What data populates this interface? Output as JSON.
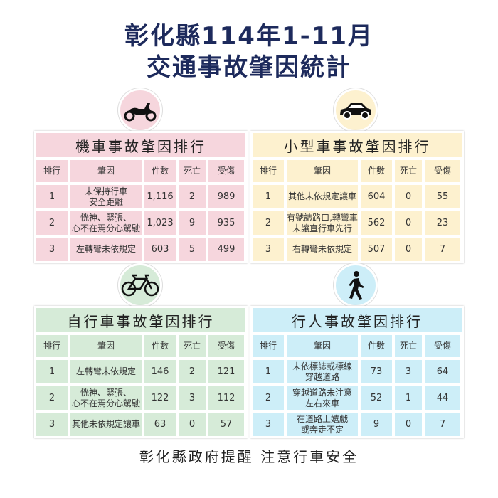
{
  "title": {
    "line1": "彰化縣114年1-11月",
    "line2": "交通事故肇因統計"
  },
  "columns": [
    "排行",
    "肇因",
    "件數",
    "死亡",
    "受傷"
  ],
  "panels": [
    {
      "title": "機車事故肇因排行",
      "icon": "motorcycle-icon",
      "color": "#f6d6dd",
      "rows": [
        {
          "rank": "1",
          "cause": "未保持行車\n安全距離",
          "cases": "1,116",
          "deaths": "2",
          "injuries": "989"
        },
        {
          "rank": "2",
          "cause": "恍神、緊張、\n心不在焉分心駕駛",
          "cases": "1,023",
          "deaths": "9",
          "injuries": "935"
        },
        {
          "rank": "3",
          "cause": "左轉彎未依規定",
          "cases": "603",
          "deaths": "5",
          "injuries": "499"
        }
      ]
    },
    {
      "title": "小型車事故肇因排行",
      "icon": "car-icon",
      "color": "#fdf1cf",
      "rows": [
        {
          "rank": "1",
          "cause": "其他未依規定讓車",
          "cases": "604",
          "deaths": "0",
          "injuries": "55"
        },
        {
          "rank": "2",
          "cause": "有號誌路口,轉彎車\n未讓直行車先行",
          "cases": "562",
          "deaths": "0",
          "injuries": "23"
        },
        {
          "rank": "3",
          "cause": "右轉彎未依規定",
          "cases": "507",
          "deaths": "0",
          "injuries": "7"
        }
      ]
    },
    {
      "title": "自行車事故肇因排行",
      "icon": "bicycle-icon",
      "color": "#d6ebd8",
      "rows": [
        {
          "rank": "1",
          "cause": "左轉彎未依規定",
          "cases": "146",
          "deaths": "2",
          "injuries": "121"
        },
        {
          "rank": "2",
          "cause": "恍神、緊張、\n心不在焉分心駕駛",
          "cases": "122",
          "deaths": "3",
          "injuries": "112"
        },
        {
          "rank": "3",
          "cause": "其他未依規定讓車",
          "cases": "63",
          "deaths": "0",
          "injuries": "57"
        }
      ]
    },
    {
      "title": "行人事故肇因排行",
      "icon": "pedestrian-icon",
      "color": "#cdeef8",
      "rows": [
        {
          "rank": "1",
          "cause": "未依標誌或標線\n穿越道路",
          "cases": "73",
          "deaths": "3",
          "injuries": "64"
        },
        {
          "rank": "2",
          "cause": "穿越道路未注意\n左右來車",
          "cases": "52",
          "deaths": "1",
          "injuries": "44"
        },
        {
          "rank": "3",
          "cause": "在道路上嬉戲\n或奔走不定",
          "cases": "9",
          "deaths": "0",
          "injuries": "7"
        }
      ]
    }
  ],
  "footer": "彰化縣政府提醒 注意行車安全"
}
